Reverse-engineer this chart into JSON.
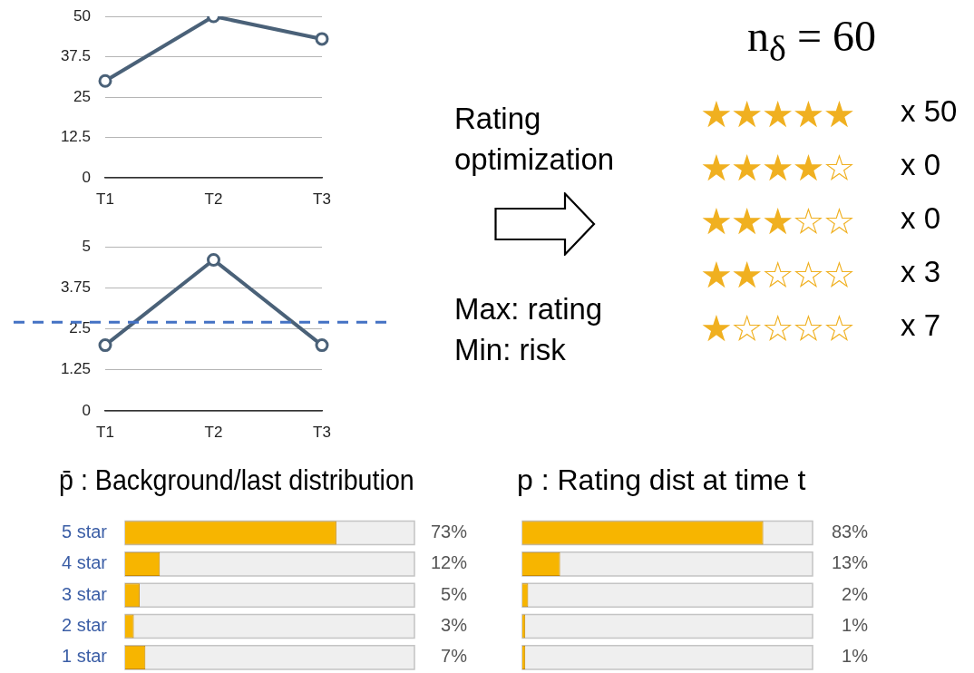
{
  "chart_data": [
    {
      "type": "line",
      "categories": [
        "T1",
        "T2",
        "T3"
      ],
      "values": [
        30,
        50,
        43
      ],
      "color": "#4a6178",
      "ylim": [
        0,
        50
      ],
      "yticks": [
        0,
        12.5,
        25,
        37.5,
        50
      ],
      "grid": "y",
      "marker": "circle"
    },
    {
      "type": "line",
      "categories": [
        "T1",
        "T2",
        "T3"
      ],
      "values": [
        2,
        4.6,
        2
      ],
      "color": "#4a6178",
      "ylim": [
        0,
        5
      ],
      "yticks": [
        0,
        1.25,
        2.5,
        3.75,
        5
      ],
      "grid": "y",
      "marker": "circle",
      "ref_lines": [
        {
          "axis": "y",
          "value": 2.7,
          "color": "#4472c4",
          "line_style": "dashed"
        }
      ]
    },
    {
      "type": "other",
      "title": "n$_{δ}$ = 60",
      "categories": [
        "★★★★★",
        "★★★★☆",
        "★★★☆☆",
        "★★☆☆☆",
        "★☆☆☆☆"
      ],
      "value_labels": [
        "x 50",
        "x 0",
        "x 0",
        "x 3",
        "x 7"
      ],
      "color": "#f0b020",
      "annotations": [
        "Rating optimization",
        "Max: rating",
        "Min: risk"
      ]
    },
    {
      "type": "bar",
      "orientation": "horizontal",
      "title": "p̄ : Background/last distribution",
      "categories": [
        "5 star",
        "4 star",
        "3 star",
        "2 star",
        "1 star"
      ],
      "values": [
        73,
        12,
        5,
        3,
        7
      ],
      "value_labels": [
        "73%",
        "12%",
        "5%",
        "3%",
        "7%"
      ],
      "color": "#f7b500",
      "xlim": [
        0,
        100
      ],
      "tick_labels": "y"
    },
    {
      "type": "bar",
      "orientation": "horizontal",
      "title": "p : Rating dist at time t",
      "categories": [
        null,
        null,
        null,
        null,
        null
      ],
      "values": [
        83,
        13,
        2,
        1,
        1
      ],
      "value_labels": [
        "83%",
        "13%",
        "2%",
        "1%",
        "1%"
      ],
      "color": "#f7b500",
      "xlim": [
        0,
        100
      ],
      "tick_labels": false
    }
  ]
}
